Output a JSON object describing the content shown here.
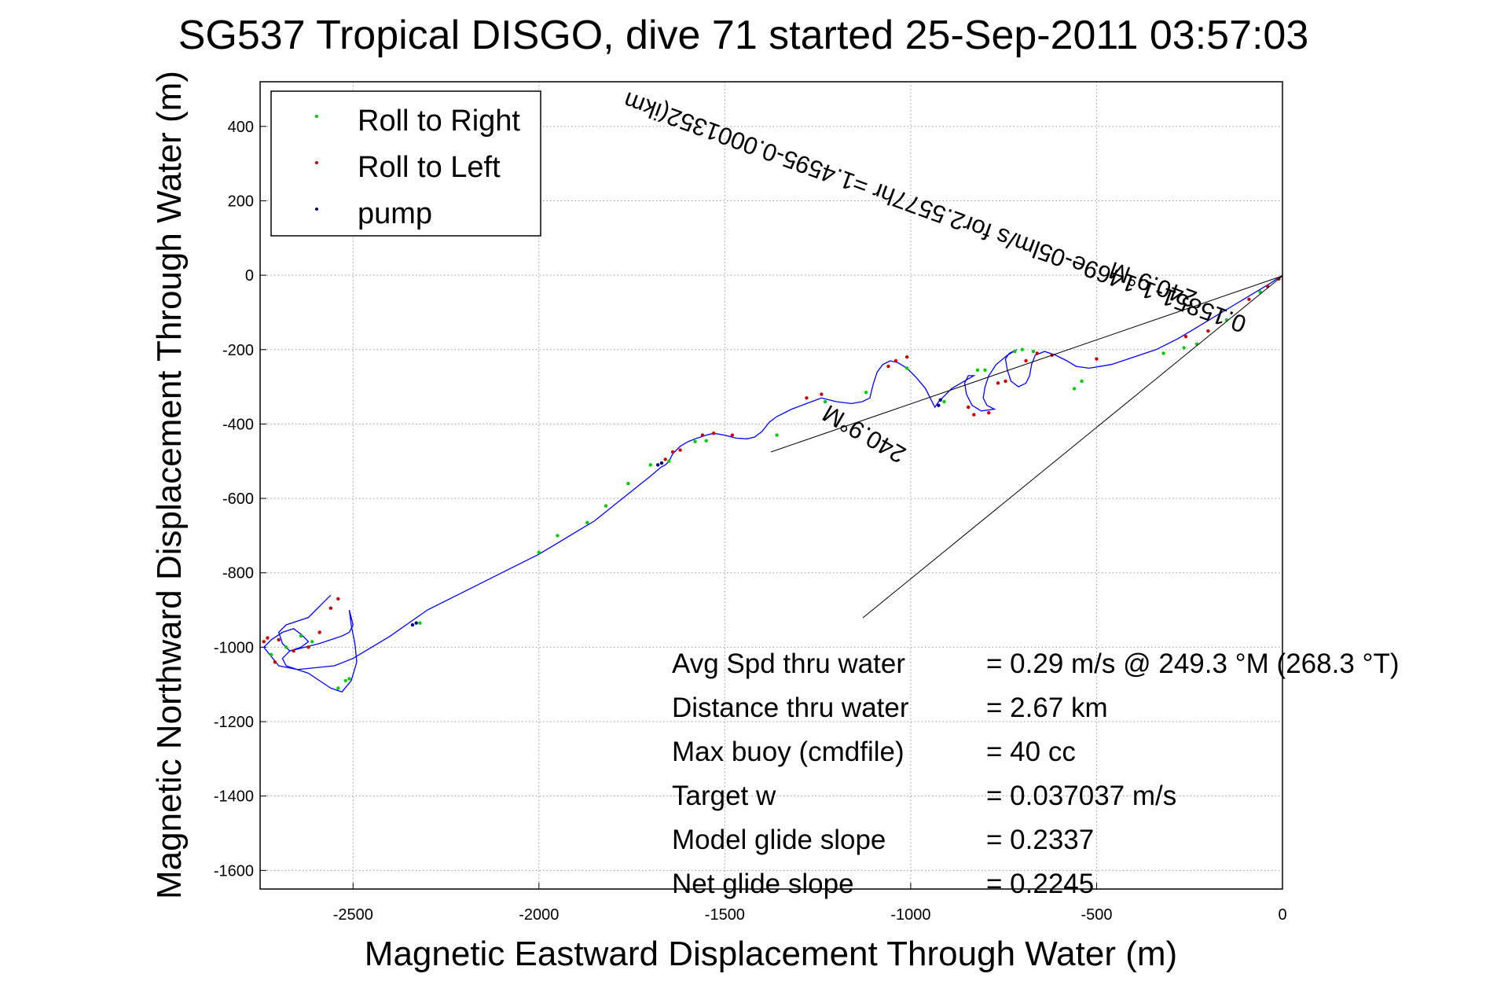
{
  "chart_data": {
    "type": "line",
    "title": "SG537 Tropical DISGO, dive 71 started 25-Sep-2011 03:57:03",
    "xlabel": "Magnetic Eastward Displacement Through Water (m)",
    "ylabel": "Magnetic Northward Displacement Through Water (m)",
    "xlim": [
      -2750,
      0
    ],
    "ylim": [
      -1650,
      520
    ],
    "xticks": [
      -2500,
      -2000,
      -1500,
      -1000,
      -500,
      0
    ],
    "yticks": [
      400,
      200,
      0,
      -200,
      -400,
      -600,
      -800,
      -1000,
      -1200,
      -1400,
      -1600
    ],
    "grid": true,
    "legend_position": "top-left",
    "legend": [
      {
        "label": "Roll to Right",
        "color": "#00cc00"
      },
      {
        "label": "Roll to Left",
        "color": "#cc0000"
      },
      {
        "label": "pump",
        "color": "#000080"
      }
    ],
    "series": [
      {
        "name": "track",
        "color": "#0000ff",
        "x": [
          0,
          -30,
          -80,
          -130,
          -180,
          -230,
          -280,
          -340,
          -400,
          -460,
          -520,
          -555,
          -580,
          -610,
          -640,
          -665,
          -675,
          -680,
          -690,
          -710,
          -730,
          -740,
          -745,
          -735,
          -715,
          -740,
          -770,
          -790,
          -800,
          -805,
          -795,
          -775,
          -810,
          -835,
          -850,
          -855,
          -845,
          -830,
          -865,
          -890,
          -910,
          -925,
          -935,
          -945,
          -960,
          -985,
          -1010,
          -1035,
          -1055,
          -1075,
          -1090,
          -1100,
          -1105,
          -1110,
          -1130,
          -1160,
          -1200,
          -1240,
          -1280,
          -1320,
          -1360,
          -1380,
          -1400,
          -1420,
          -1440,
          -1470,
          -1500,
          -1530,
          -1550,
          -1580,
          -1600,
          -1620,
          -1640,
          -1650,
          -1660,
          -1670,
          -1700,
          -1750,
          -1800,
          -1850,
          -1900,
          -1950,
          -2000,
          -2100,
          -2200,
          -2300,
          -2350,
          -2400,
          -2450,
          -2500,
          -2550,
          -2600,
          -2650,
          -2680,
          -2690,
          -2670,
          -2630,
          -2590,
          -2560,
          -2530,
          -2510,
          -2500,
          -2505,
          -2510,
          -2505,
          -2495,
          -2490,
          -2505,
          -2530,
          -2560,
          -2590,
          -2620,
          -2650,
          -2700,
          -2740,
          -2720,
          -2690,
          -2660,
          -2640,
          -2620,
          -2640,
          -2670,
          -2690,
          -2700,
          -2680,
          -2650,
          -2620,
          -2600,
          -2580,
          -2560
        ],
        "y": [
          0,
          -20,
          -50,
          -80,
          -110,
          -140,
          -170,
          -200,
          -220,
          -240,
          -250,
          -245,
          -230,
          -215,
          -205,
          -215,
          -240,
          -270,
          -290,
          -300,
          -285,
          -255,
          -225,
          -210,
          -200,
          -215,
          -240,
          -270,
          -300,
          -330,
          -350,
          -360,
          -365,
          -350,
          -320,
          -290,
          -270,
          -270,
          -290,
          -305,
          -325,
          -340,
          -355,
          -335,
          -305,
          -275,
          -250,
          -235,
          -230,
          -240,
          -260,
          -290,
          -310,
          -330,
          -340,
          -345,
          -340,
          -330,
          -345,
          -360,
          -380,
          -395,
          -420,
          -435,
          -440,
          -438,
          -430,
          -425,
          -430,
          -440,
          -448,
          -460,
          -480,
          -500,
          -510,
          -515,
          -540,
          -580,
          -620,
          -660,
          -690,
          -720,
          -750,
          -800,
          -850,
          -900,
          -935,
          -970,
          -1000,
          -1030,
          -1050,
          -1055,
          -1060,
          -1050,
          -1030,
          -1010,
          -1000,
          -990,
          -980,
          -970,
          -960,
          -940,
          -920,
          -900,
          -940,
          -990,
          -1040,
          -1090,
          -1120,
          -1110,
          -1090,
          -1070,
          -1060,
          -1050,
          -1000,
          -980,
          -960,
          -950,
          -965,
          -985,
          -1000,
          -1010,
          -990,
          -960,
          -940,
          -930,
          -920,
          -900,
          -880,
          -860
        ]
      },
      {
        "name": "Roll to Right",
        "color": "#00cc00",
        "x": [
          -60,
          -150,
          -230,
          -265,
          -320,
          -540,
          -560,
          -670,
          -700,
          -720,
          -800,
          -820,
          -910,
          -1010,
          -1120,
          -1230,
          -1360,
          -1550,
          -1580,
          -1650,
          -1700,
          -1760,
          -1820,
          -1870,
          -1950,
          -2000,
          -2320,
          -2520,
          -2510,
          -2540,
          -2610,
          -2640,
          -2680,
          -2720
        ],
        "y": [
          -45,
          -120,
          -185,
          -195,
          -210,
          -285,
          -305,
          -205,
          -200,
          -205,
          -255,
          -255,
          -340,
          -250,
          -315,
          -340,
          -430,
          -445,
          -447,
          -500,
          -510,
          -560,
          -620,
          -665,
          -700,
          -745,
          -935,
          -1090,
          -1085,
          -1110,
          -985,
          -970,
          -1000,
          -1020
        ]
      },
      {
        "name": "Roll to Left",
        "color": "#cc0000",
        "x": [
          -10,
          -40,
          -90,
          -200,
          -260,
          -500,
          -620,
          -660,
          -690,
          -745,
          -765,
          -790,
          -830,
          -845,
          -1010,
          -1040,
          -1060,
          -1240,
          -1280,
          -1480,
          -1530,
          -1560,
          -1620,
          -1640,
          -1660,
          -2540,
          -2560,
          -2590,
          -2620,
          -2660,
          -2700,
          -2730,
          -2740,
          -2710
        ],
        "y": [
          -10,
          -30,
          -65,
          -150,
          -165,
          -225,
          -215,
          -210,
          -230,
          -285,
          -290,
          -370,
          -375,
          -355,
          -220,
          -230,
          -245,
          -320,
          -330,
          -430,
          -425,
          -430,
          -470,
          -475,
          -495,
          -870,
          -895,
          -960,
          -1000,
          -1010,
          -980,
          -975,
          -985,
          -1040
        ]
      },
      {
        "name": "pump",
        "color": "#000080",
        "x": [
          -920,
          -925,
          -1670,
          -1680,
          -2330,
          -2340
        ],
        "y": [
          -335,
          -350,
          -505,
          -510,
          -935,
          -940
        ]
      }
    ],
    "annotations": {
      "drift_label": "0.15851-1.1469e-05lm/s for2.5577hr =1.4595-0.0001352(ikm",
      "heading_label_1": "240.9°M",
      "heading_label_2": "240.9°M"
    },
    "stats": [
      {
        "label": "Avg Spd thru water",
        "value": "=  0.29 m/s @ 249.3 °M (268.3 °T)"
      },
      {
        "label": "Distance thru water",
        "value": "=  2.67 km"
      },
      {
        "label": "Max buoy (cmdfile)",
        "value": "= 40 cc"
      },
      {
        "label": "Target w",
        "value": "= 0.037037 m/s"
      },
      {
        "label": "Model glide slope",
        "value": "= 0.2337"
      },
      {
        "label": "Net glide slope",
        "value": "= 0.2245"
      }
    ]
  }
}
